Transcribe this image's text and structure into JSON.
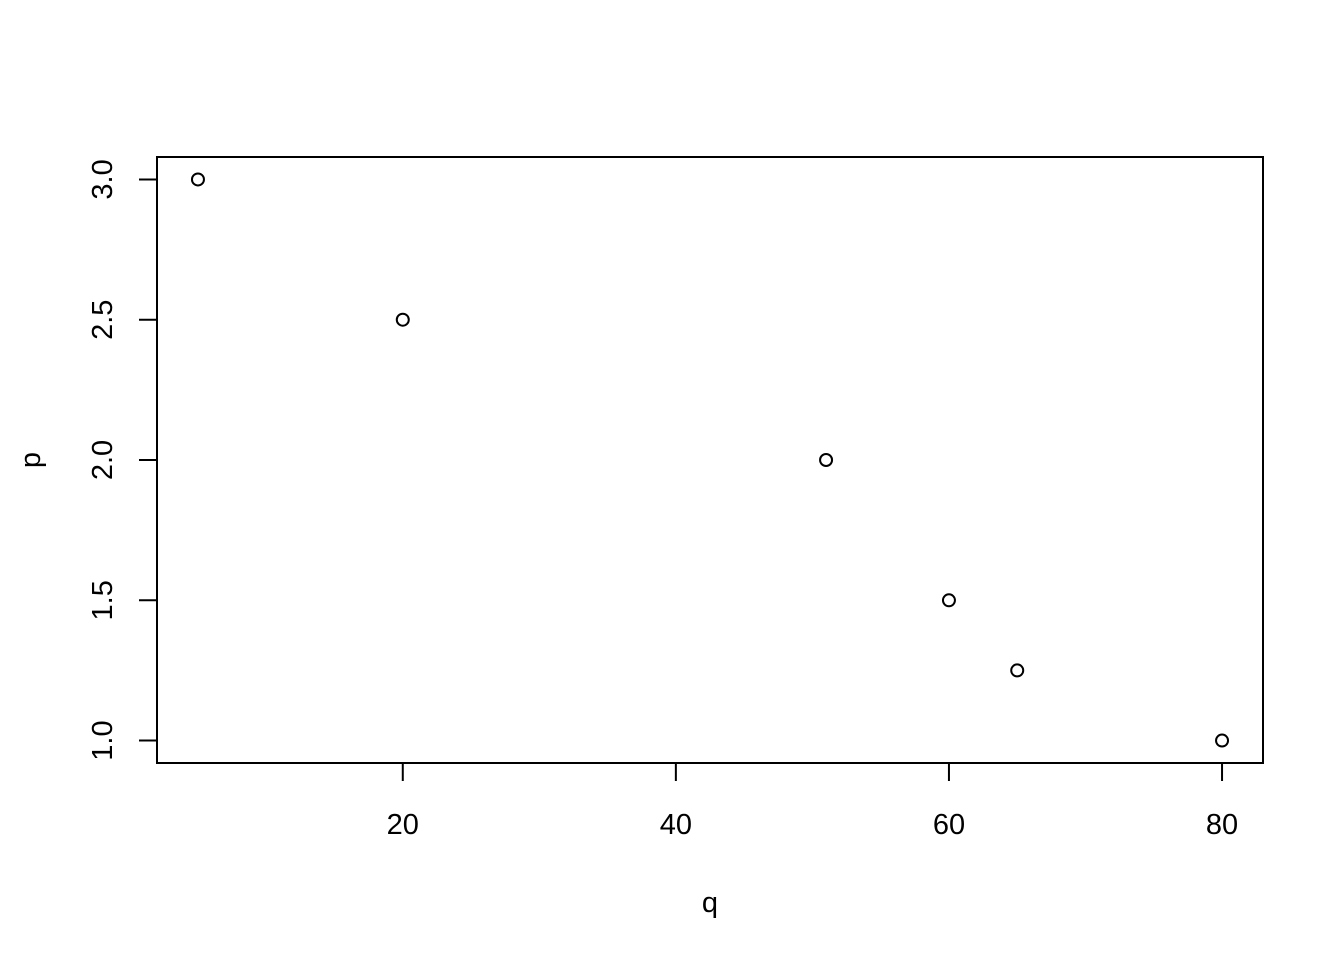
{
  "chart_data": {
    "type": "scatter",
    "title": "",
    "xlabel": "q",
    "ylabel": "p",
    "x": [
      5,
      20,
      51,
      60,
      65,
      80
    ],
    "y": [
      3.0,
      2.5,
      2.0,
      1.5,
      1.25,
      1.0
    ],
    "xlim": [
      2,
      83
    ],
    "ylim": [
      0.92,
      3.08
    ],
    "xticks": [
      20,
      40,
      60,
      80
    ],
    "xtick_labels": [
      "20",
      "40",
      "60",
      "80"
    ],
    "yticks": [
      1.0,
      1.5,
      2.0,
      2.5,
      3.0
    ],
    "ytick_labels": [
      "1.0",
      "1.5",
      "2.0",
      "2.5",
      "3.0"
    ],
    "grid": false,
    "marker": "open-circle",
    "color": "#000000"
  }
}
